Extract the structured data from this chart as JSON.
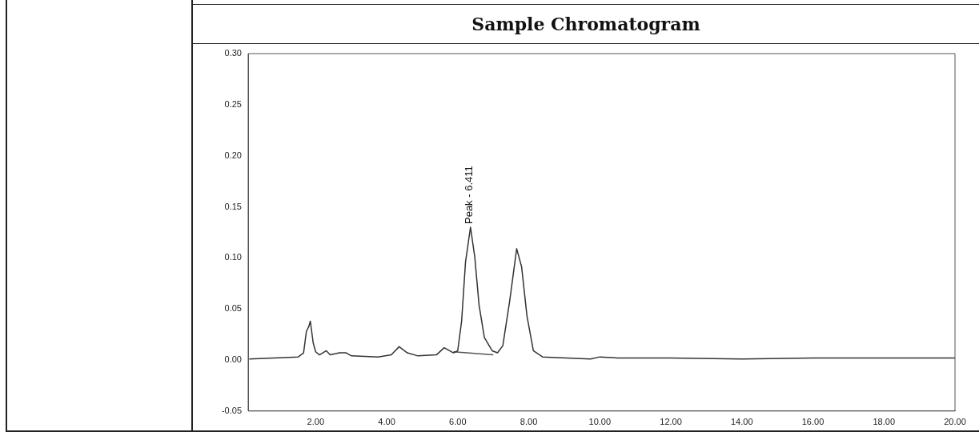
{
  "chart_data": {
    "type": "line",
    "title": "Sample Chromatogram",
    "xlim": [
      0.1,
      20
    ],
    "ylim": [
      -0.05,
      0.3
    ],
    "xticks": [
      {
        "value": 2,
        "label": "2.00"
      },
      {
        "value": 4,
        "label": "4.00"
      },
      {
        "value": 6,
        "label": "6.00"
      },
      {
        "value": 8,
        "label": "8.00"
      },
      {
        "value": 10,
        "label": "10.00"
      },
      {
        "value": 12,
        "label": "12.00"
      },
      {
        "value": 14,
        "label": "14.00"
      },
      {
        "value": 16,
        "label": "16.00"
      },
      {
        "value": 18,
        "label": "18.00"
      },
      {
        "value": 20,
        "label": "20.00"
      }
    ],
    "yticks": [
      {
        "value": -0.05,
        "label": "-0.05"
      },
      {
        "value": 0,
        "label": "0.00"
      },
      {
        "value": 0.05,
        "label": "0.05"
      },
      {
        "value": 0.1,
        "label": "0.10"
      },
      {
        "value": 0.15,
        "label": "0.15"
      },
      {
        "value": 0.2,
        "label": "0.20"
      },
      {
        "value": 0.25,
        "label": "0.25"
      },
      {
        "value": 0.3,
        "label": "0.30"
      }
    ],
    "grid": false,
    "legend": false,
    "marker": "none",
    "line_style": "solid",
    "series": [
      {
        "color": "#333333",
        "x": [
          0.13,
          1.51,
          1.66,
          1.74,
          1.81,
          1.85,
          1.93,
          2.0,
          2.11,
          2.3,
          2.41,
          2.67,
          2.86,
          3.01,
          3.76,
          4.13,
          4.35,
          4.58,
          4.88,
          5.4,
          5.62,
          5.88,
          6.0,
          6.11,
          6.22,
          6.36,
          6.48,
          6.6,
          6.75,
          6.97,
          7.12,
          7.27,
          7.46,
          7.66,
          7.8,
          7.95,
          8.13,
          8.39,
          9.74,
          10.0,
          10.5,
          12,
          14,
          16,
          18,
          20
        ],
        "values": [
          0.001,
          0.003,
          0.007,
          0.028,
          0.033,
          0.038,
          0.017,
          0.008,
          0.005,
          0.009,
          0.005,
          0.007,
          0.007,
          0.004,
          0.003,
          0.005,
          0.013,
          0.007,
          0.004,
          0.005,
          0.012,
          0.007,
          0.009,
          0.038,
          0.096,
          0.13,
          0.101,
          0.054,
          0.022,
          0.009,
          0.007,
          0.014,
          0.057,
          0.109,
          0.091,
          0.043,
          0.009,
          0.003,
          0.001,
          0.003,
          0.002,
          0.002,
          0.001,
          0.002,
          0.002,
          0.002
        ]
      },
      {
        "color": "#555555",
        "x": [
          5.88,
          7.0
        ],
        "values": [
          0.008,
          0.005
        ]
      }
    ],
    "annotations": [
      {
        "text": "Peak - 6.411",
        "x": 6.36,
        "y": 0.13
      }
    ]
  }
}
